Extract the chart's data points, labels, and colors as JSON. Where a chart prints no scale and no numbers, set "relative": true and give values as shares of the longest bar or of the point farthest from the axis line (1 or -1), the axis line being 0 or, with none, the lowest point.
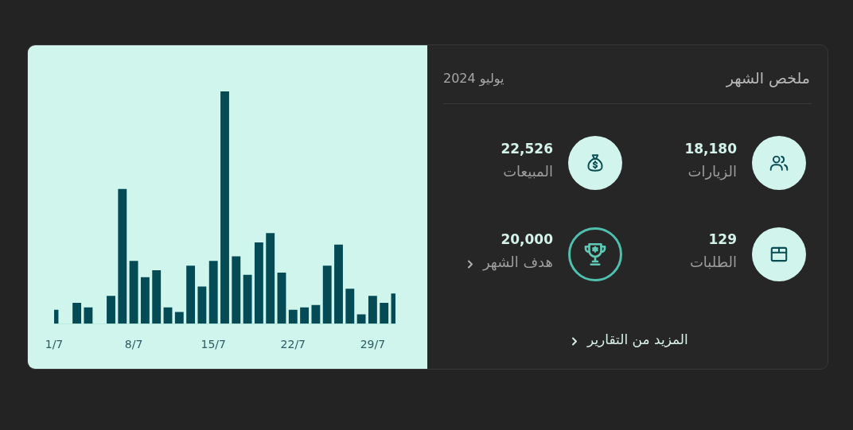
{
  "chart_data": [
    {
      "type": "bar",
      "relative": true,
      "color": "#054b55",
      "categories": [
        "1/7",
        null,
        null,
        null,
        null,
        null,
        null,
        "8/7",
        null,
        null,
        null,
        null,
        null,
        null,
        "15/7",
        null,
        null,
        null,
        null,
        null,
        null,
        "22/7",
        null,
        null,
        null,
        null,
        null,
        null,
        "29/7",
        null,
        null
      ],
      "values": [
        0.06,
        0,
        0.09,
        0.07,
        0,
        0.12,
        0.58,
        0.27,
        0.2,
        0.23,
        0.07,
        0.05,
        0.25,
        0.16,
        0.27,
        1,
        0.29,
        0.21,
        0.35,
        0.39,
        0.22,
        0.06,
        0.07,
        0.08,
        0.25,
        0.34,
        0.15,
        0.04,
        0.12,
        0.09,
        0.13
      ]
    },
    {
      "type": "other",
      "title": "ملخص الشهر",
      "subtitle": "يوليو 2024",
      "categories": [
        "الزيارات",
        "المبيعات",
        "الطلبات",
        "هدف الشهر"
      ],
      "values": [
        18180,
        22526,
        129,
        20000
      ],
      "value_labels": [
        "18,180",
        "22,526",
        "129",
        "20,000"
      ],
      "annotations": [
        "المزيد من التقارير"
      ]
    }
  ]
}
